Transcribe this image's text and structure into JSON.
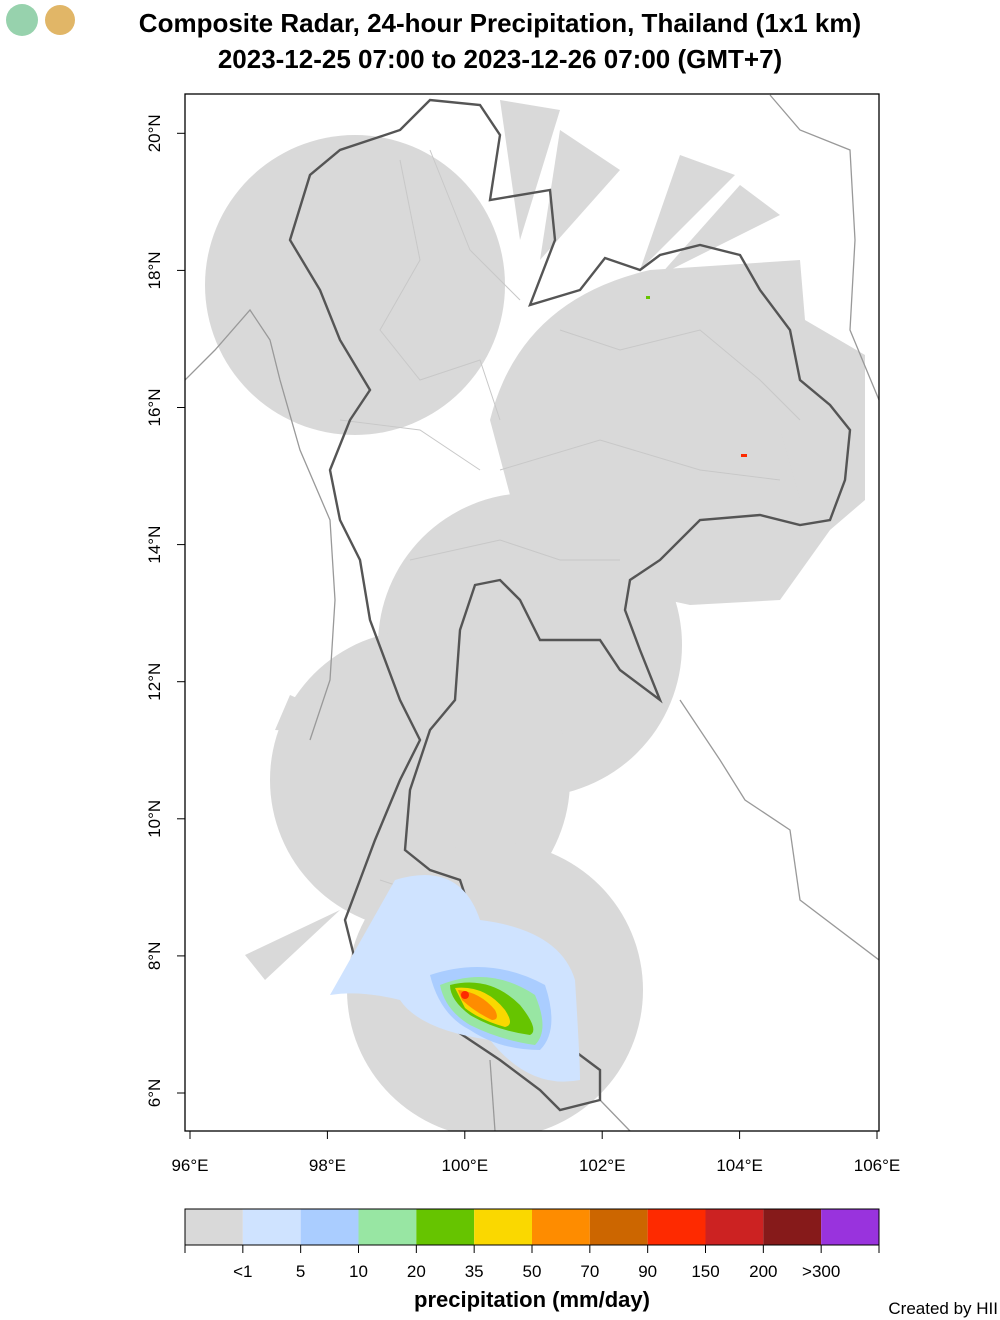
{
  "title": [
    "Composite Radar, 24-hour Precipitation, Thailand (1x1 km)",
    "2023-12-25 07:00 to 2023-12-26 07:00 (GMT+7)"
  ],
  "map": {
    "lon_ticks": [
      "96°E",
      "98°E",
      "100°E",
      "102°E",
      "104°E",
      "106°E"
    ],
    "lat_ticks": [
      "6°N",
      "8°N",
      "10°N",
      "12°N",
      "14°N",
      "16°N",
      "18°N",
      "20°N"
    ]
  },
  "legend": {
    "colors": [
      "#d9d9d9",
      "#cfe3ff",
      "#aacdff",
      "#98e6a3",
      "#66c400",
      "#fad800",
      "#fe8c00",
      "#cc6600",
      "#fe2a00",
      "#cc2222",
      "#861a1a",
      "#9933dd"
    ],
    "labels": [
      "<1",
      "5",
      "10",
      "20",
      "35",
      "50",
      "70",
      "90",
      "150",
      "200",
      ">300"
    ],
    "title": "precipitation (mm/day)"
  },
  "credit": "Created by HII"
}
